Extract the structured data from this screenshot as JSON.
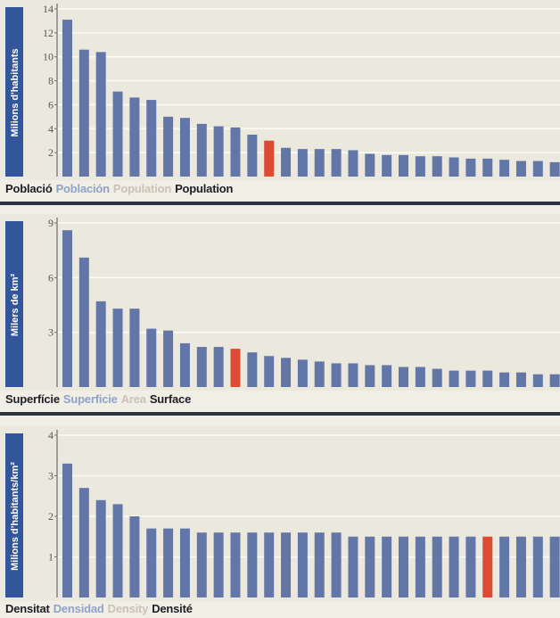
{
  "colors": {
    "bar": "#6277a8",
    "highlight": "#de4b35",
    "side_band": "#33569a",
    "chart_bg": "#ebe8dd",
    "grid": "#fbfaf5",
    "axis": "#6d6d6d",
    "label_dark": "#1d1f26",
    "label_blue": "#8fa2c9",
    "label_grey": "#c9c2b6"
  },
  "chart_data": [
    {
      "type": "bar",
      "ylabel": "Milions d'habitants",
      "ylim": [
        0,
        14
      ],
      "yticks": [
        2,
        4,
        6,
        8,
        10,
        12,
        14
      ],
      "grid": true,
      "highlight_index": 12,
      "values": [
        13.1,
        10.6,
        10.4,
        7.1,
        6.6,
        6.4,
        5.0,
        4.9,
        4.4,
        4.2,
        4.1,
        3.5,
        3.0,
        2.4,
        2.3,
        2.3,
        2.3,
        2.2,
        1.9,
        1.8,
        1.8,
        1.7,
        1.7,
        1.6,
        1.5,
        1.5,
        1.4,
        1.3,
        1.3,
        1.2,
        1.1
      ],
      "legend": [
        {
          "text": "Població",
          "color": "label_dark"
        },
        {
          "text": "Población",
          "color": "label_blue"
        },
        {
          "text": "Population",
          "color": "label_grey"
        },
        {
          "text": "Population",
          "color": "label_dark"
        }
      ]
    },
    {
      "type": "bar",
      "ylabel": "Milers de km²",
      "ylim": [
        0,
        9
      ],
      "yticks": [
        3,
        6,
        9
      ],
      "grid": true,
      "highlight_index": 10,
      "values": [
        8.6,
        7.1,
        4.7,
        4.3,
        4.3,
        3.2,
        3.1,
        2.4,
        2.2,
        2.2,
        2.1,
        1.9,
        1.7,
        1.6,
        1.5,
        1.4,
        1.3,
        1.3,
        1.2,
        1.2,
        1.1,
        1.1,
        1.0,
        0.9,
        0.9,
        0.9,
        0.8,
        0.8,
        0.7,
        0.7,
        0.7
      ],
      "legend": [
        {
          "text": "Superfície",
          "color": "label_dark"
        },
        {
          "text": "Superficie",
          "color": "label_blue"
        },
        {
          "text": "Area",
          "color": "label_grey"
        },
        {
          "text": "Surface",
          "color": "label_dark"
        }
      ]
    },
    {
      "type": "bar",
      "ylabel": "Milions d'habitants/km²",
      "ylim": [
        0,
        4
      ],
      "yticks": [
        1,
        2,
        3,
        4
      ],
      "grid": true,
      "highlight_index": 25,
      "values": [
        3.3,
        2.7,
        2.4,
        2.3,
        2.0,
        1.7,
        1.7,
        1.7,
        1.6,
        1.6,
        1.6,
        1.6,
        1.6,
        1.6,
        1.6,
        1.6,
        1.6,
        1.5,
        1.5,
        1.5,
        1.5,
        1.5,
        1.5,
        1.5,
        1.5,
        1.5,
        1.5,
        1.5,
        1.5,
        1.5,
        1.5
      ],
      "legend": [
        {
          "text": "Densitat",
          "color": "label_dark"
        },
        {
          "text": "Densidad",
          "color": "label_blue"
        },
        {
          "text": "Density",
          "color": "label_grey"
        },
        {
          "text": "Densité",
          "color": "label_dark"
        }
      ]
    }
  ]
}
